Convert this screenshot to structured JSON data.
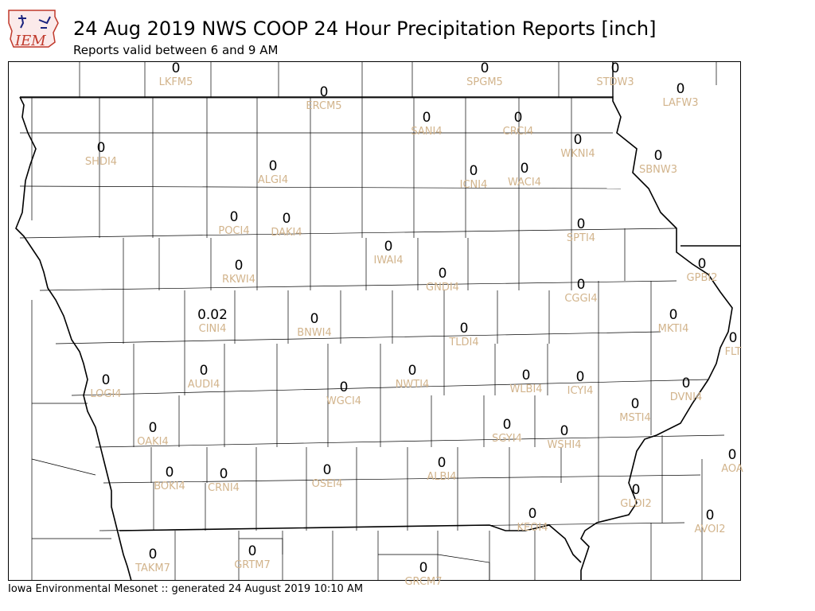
{
  "header": {
    "logo_text": "IEM",
    "title": "24 Aug 2019 NWS COOP 24 Hour Precipitation Reports [inch]",
    "subtitle": "Reports valid between 6 and 9 AM"
  },
  "footer": {
    "text": "Iowa Environmental Mesonet :: generated 24 August 2019 10:10 AM"
  },
  "colors": {
    "value": "#000000",
    "station_label": "#d2b48c",
    "county_line": "#000000",
    "state_line": "#000000",
    "logo_red": "#c0392b",
    "logo_blue": "#1a237e"
  },
  "stations": [
    {
      "id": "LKFM5",
      "value": "0"
    },
    {
      "id": "SPGM5",
      "value": "0"
    },
    {
      "id": "STDW3",
      "value": "0"
    },
    {
      "id": "ERCM5",
      "value": "0"
    },
    {
      "id": "LAFW3",
      "value": "0"
    },
    {
      "id": "SANI4",
      "value": "0"
    },
    {
      "id": "CRCI4",
      "value": "0"
    },
    {
      "id": "SHDI4",
      "value": "0"
    },
    {
      "id": "WKNI4",
      "value": "0"
    },
    {
      "id": "SBNW3",
      "value": "0"
    },
    {
      "id": "ALGI4",
      "value": "0"
    },
    {
      "id": "ICNI4",
      "value": "0"
    },
    {
      "id": "WACI4",
      "value": "0"
    },
    {
      "id": "POCI4",
      "value": "0"
    },
    {
      "id": "DAKI4",
      "value": "0"
    },
    {
      "id": "SPTI4",
      "value": "0"
    },
    {
      "id": "IWAI4",
      "value": "0"
    },
    {
      "id": "RKWI4",
      "value": "0"
    },
    {
      "id": "GPBI2",
      "value": "0"
    },
    {
      "id": "GNDI4",
      "value": "0"
    },
    {
      "id": "CGGI4",
      "value": "0"
    },
    {
      "id": "CINI4",
      "value": "0.02"
    },
    {
      "id": "BNWI4",
      "value": "0"
    },
    {
      "id": "MKTI4",
      "value": "0"
    },
    {
      "id": "TLDI4",
      "value": "0"
    },
    {
      "id": "FLT",
      "value": "0"
    },
    {
      "id": "AUDI4",
      "value": "0"
    },
    {
      "id": "NWTI4",
      "value": "0"
    },
    {
      "id": "LOGI4",
      "value": "0"
    },
    {
      "id": "WLBI4",
      "value": "0"
    },
    {
      "id": "ICYI4",
      "value": "0"
    },
    {
      "id": "WGCI4",
      "value": "0"
    },
    {
      "id": "DVNI4",
      "value": "0"
    },
    {
      "id": "MSTI4",
      "value": "0"
    },
    {
      "id": "OAKI4",
      "value": "0"
    },
    {
      "id": "SGYI4",
      "value": "0"
    },
    {
      "id": "WSHI4",
      "value": "0"
    },
    {
      "id": "AOA",
      "value": "0"
    },
    {
      "id": "ALBI4",
      "value": "0"
    },
    {
      "id": "BOKI4",
      "value": "0"
    },
    {
      "id": "CRNI4",
      "value": "0"
    },
    {
      "id": "OSEI4",
      "value": "0"
    },
    {
      "id": "GLDI2",
      "value": "0"
    },
    {
      "id": "KEOI4",
      "value": "0"
    },
    {
      "id": "AVOI2",
      "value": "0"
    },
    {
      "id": "TAKM7",
      "value": "0"
    },
    {
      "id": "GRTM7",
      "value": "0"
    },
    {
      "id": "GRCM7",
      "value": "0"
    }
  ]
}
